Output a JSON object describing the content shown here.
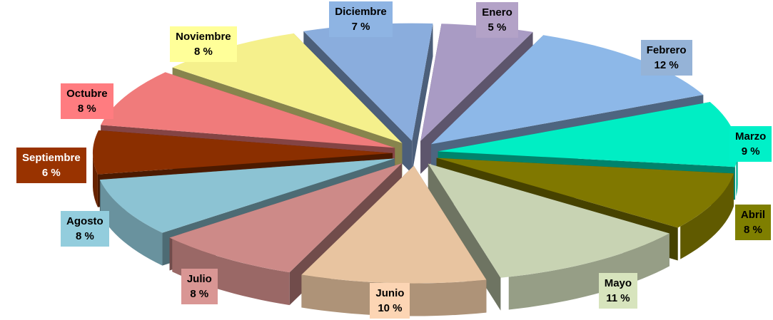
{
  "chart_data": {
    "type": "pie",
    "style": "3d-exploded",
    "categories": [
      "Enero",
      "Febrero",
      "Marzo",
      "Abril",
      "Mayo",
      "Junio",
      "Julio",
      "Agosto",
      "Septiembre",
      "Octubre",
      "Noviembre",
      "Diciembre"
    ],
    "values": [
      5,
      12,
      9,
      8,
      11,
      10,
      8,
      8,
      6,
      8,
      8,
      7
    ],
    "value_labels": [
      "5 %",
      "12 %",
      "9 %",
      "8 %",
      "11 %",
      "10 %",
      "8 %",
      "8 %",
      "6 %",
      "8 %",
      "8 %",
      "7 %"
    ],
    "colors": [
      "#a99bc4",
      "#8db8e8",
      "#00eec4",
      "#807800",
      "#c8d3b3",
      "#e8c4a0",
      "#cd8a88",
      "#8cc3d3",
      "#8b2f00",
      "#f07b7b",
      "#f5f08c",
      "#8aaddd"
    ],
    "label_colors": [
      "#b3a2c7",
      "#95b3d7",
      "#00f0c8",
      "#7f7f00",
      "#d7e4bd",
      "#fcd5b4",
      "#d99694",
      "#93cddd",
      "#993300",
      "#ff7c80",
      "#ffff99",
      "#8eb4e3"
    ]
  }
}
